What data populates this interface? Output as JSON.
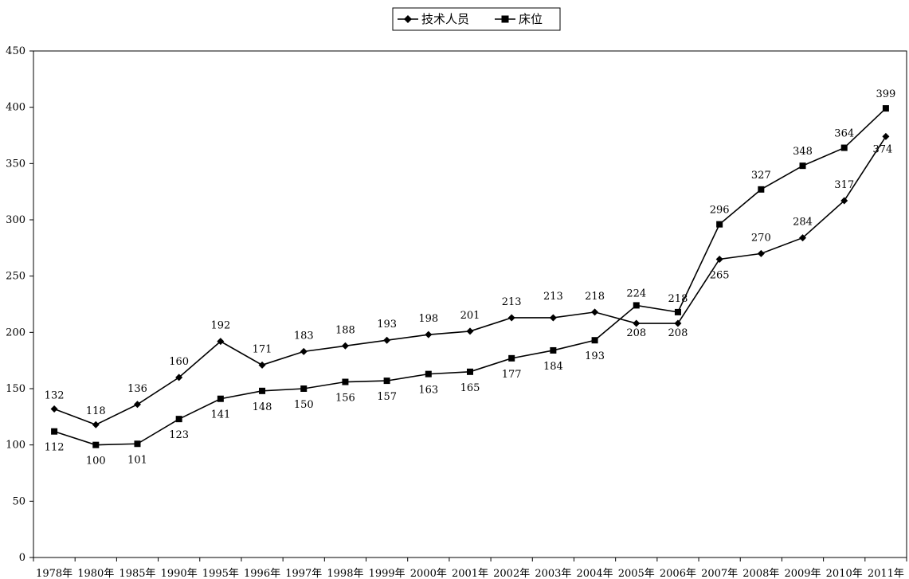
{
  "chart_data": {
    "type": "line",
    "title": "",
    "xlabel": "",
    "ylabel": "",
    "ylim": [
      0,
      450
    ],
    "yticks": [
      0,
      50,
      100,
      150,
      200,
      250,
      300,
      350,
      400,
      450
    ],
    "grid": false,
    "legend_position": "top-center",
    "categories": [
      "1978年",
      "1980年",
      "1985年",
      "1990年",
      "1995年",
      "1996年",
      "1997年",
      "1998年",
      "1999年",
      "2000年",
      "2001年",
      "2002年",
      "2003年",
      "2004年",
      "2005年",
      "2006年",
      "2007年",
      "2008年",
      "2009年",
      "2010年",
      "2011年"
    ],
    "series": [
      {
        "name": "技术人员",
        "marker": "diamond",
        "values": [
          132,
          118,
          136,
          160,
          192,
          171,
          183,
          188,
          193,
          198,
          201,
          213,
          213,
          218,
          208,
          208,
          265,
          270,
          284,
          317,
          374
        ],
        "labels": [
          "132",
          "118",
          "136",
          "160",
          "192",
          "171",
          "183",
          "188",
          "193",
          "198",
          "201",
          "213",
          "213",
          "218",
          "208",
          "208",
          "265",
          "270",
          "284",
          "317",
          "374"
        ]
      },
      {
        "name": "床位",
        "marker": "square",
        "values": [
          112,
          100,
          101,
          123,
          141,
          148,
          150,
          156,
          157,
          163,
          165,
          177,
          184,
          193,
          224,
          218,
          296,
          327,
          348,
          364,
          399
        ],
        "labels": [
          "112",
          "100",
          "101",
          "123",
          "141",
          "148",
          "150",
          "156",
          "157",
          "163",
          "165",
          "177",
          "184",
          "193",
          "224",
          "218",
          "296",
          "327",
          "348",
          "364",
          "399"
        ]
      }
    ]
  }
}
